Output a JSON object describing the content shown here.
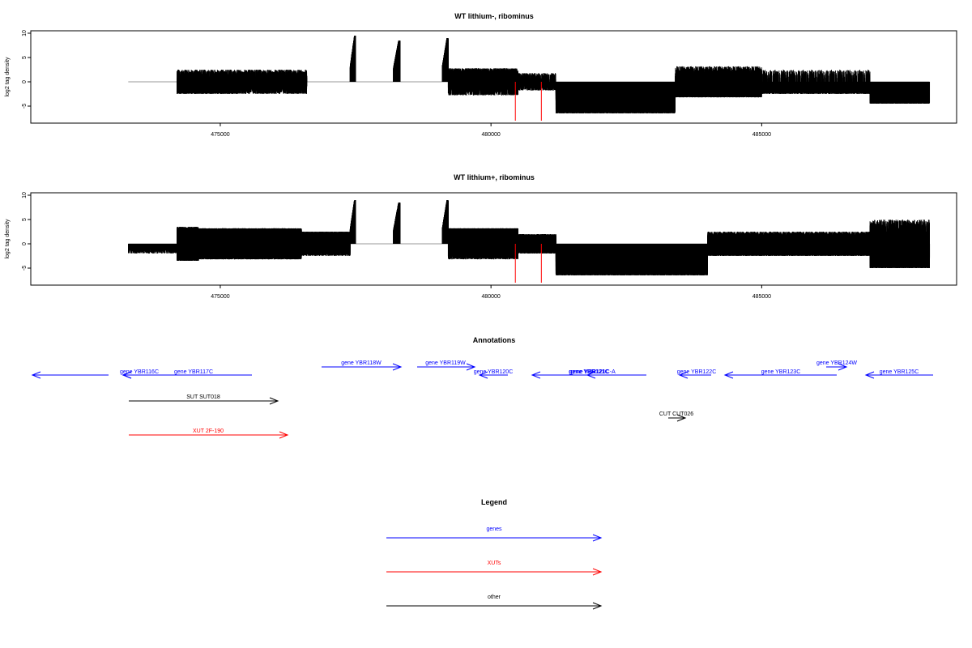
{
  "colors": {
    "gene": "#0000ff",
    "xut": "#ff0000",
    "other": "#000000",
    "axis": "#000000",
    "baseline": "#999999",
    "highlight": "#ff0000"
  },
  "chart_data": [
    {
      "type": "bar",
      "title": "WT lithium-, ribominus",
      "ylabel": "log2 tag density",
      "xlim": [
        471500,
        488600
      ],
      "ylim": [
        -8.5,
        10.5
      ],
      "yticks": [
        -5,
        0,
        5,
        10
      ],
      "xticks": [
        475000,
        480000,
        485000
      ],
      "xtick_labels": [
        "475000",
        "480000",
        "485000"
      ],
      "highlight_positions": [
        480450,
        480930
      ],
      "segments": [
        {
          "from": 473300,
          "to": 474200,
          "density": 0,
          "amplitude": 0,
          "sign": 0
        },
        {
          "from": 474200,
          "to": 475300,
          "density": 0.25,
          "amplitude": 2.5,
          "sign": 0.2
        },
        {
          "from": 475300,
          "to": 476600,
          "density": 0.15,
          "amplitude": 2.5,
          "sign": 0.4
        },
        {
          "from": 476600,
          "to": 477400,
          "density": 0,
          "amplitude": 0,
          "sign": 0
        },
        {
          "from": 477400,
          "to": 477500,
          "density": 1,
          "amplitude": 9.5,
          "sign": 1
        },
        {
          "from": 477500,
          "to": 478200,
          "density": 0,
          "amplitude": 0,
          "sign": 0
        },
        {
          "from": 478200,
          "to": 478320,
          "density": 1,
          "amplitude": 8.5,
          "sign": 1
        },
        {
          "from": 478320,
          "to": 479100,
          "density": 0,
          "amplitude": 0,
          "sign": 0
        },
        {
          "from": 479100,
          "to": 479210,
          "density": 1,
          "amplitude": 9.0,
          "sign": 1
        },
        {
          "from": 479210,
          "to": 480500,
          "density": 0.2,
          "amplitude": 2.8,
          "sign": 0.6
        },
        {
          "from": 480500,
          "to": 481200,
          "density": 0.1,
          "amplitude": 1.8,
          "sign": 0.4
        },
        {
          "from": 481200,
          "to": 483400,
          "density": 1,
          "amplitude": 6.5,
          "sign": 0
        },
        {
          "from": 483400,
          "to": 485000,
          "density": 0.55,
          "amplitude": 3.2,
          "sign": 0.1
        },
        {
          "from": 485000,
          "to": 487000,
          "density": 0.2,
          "amplitude": 2.5,
          "sign": 0.1
        },
        {
          "from": 487000,
          "to": 488100,
          "density": 0.9,
          "amplitude": 4.5,
          "sign": 0
        }
      ]
    },
    {
      "type": "bar",
      "title": "WT lithium+, ribominus",
      "ylabel": "log2 tag density",
      "xlim": [
        471500,
        488600
      ],
      "ylim": [
        -8.5,
        10.5
      ],
      "yticks": [
        -5,
        0,
        5,
        10
      ],
      "xticks": [
        475000,
        480000,
        485000
      ],
      "xtick_labels": [
        "475000",
        "480000",
        "485000"
      ],
      "highlight_positions": [
        480450,
        480930
      ],
      "segments": [
        {
          "from": 473300,
          "to": 474200,
          "density": 0.05,
          "amplitude": 2,
          "sign": 0
        },
        {
          "from": 474200,
          "to": 474600,
          "density": 0.9,
          "amplitude": 3.5,
          "sign": 0.3
        },
        {
          "from": 474600,
          "to": 476500,
          "density": 1,
          "amplitude": 3.2,
          "sign": 0.55
        },
        {
          "from": 476500,
          "to": 477400,
          "density": 0.5,
          "amplitude": 2.5,
          "sign": 0.8
        },
        {
          "from": 477400,
          "to": 477500,
          "density": 1,
          "amplitude": 9.0,
          "sign": 1
        },
        {
          "from": 477500,
          "to": 478200,
          "density": 0,
          "amplitude": 0,
          "sign": 0
        },
        {
          "from": 478200,
          "to": 478320,
          "density": 1,
          "amplitude": 8.5,
          "sign": 1
        },
        {
          "from": 478320,
          "to": 479100,
          "density": 0,
          "amplitude": 0,
          "sign": 0
        },
        {
          "from": 479100,
          "to": 479210,
          "density": 1,
          "amplitude": 9.0,
          "sign": 1
        },
        {
          "from": 479210,
          "to": 480500,
          "density": 0.9,
          "amplitude": 3.2,
          "sign": 0.85
        },
        {
          "from": 480500,
          "to": 481200,
          "density": 0.4,
          "amplitude": 2.0,
          "sign": 0.5
        },
        {
          "from": 481200,
          "to": 484000,
          "density": 1,
          "amplitude": 6.5,
          "sign": 0
        },
        {
          "from": 484000,
          "to": 487000,
          "density": 0.35,
          "amplitude": 2.5,
          "sign": 0.3
        },
        {
          "from": 487000,
          "to": 488100,
          "density": 1,
          "amplitude": 5.0,
          "sign": 0.05
        }
      ]
    }
  ],
  "annotations": {
    "title": "Annotations",
    "genes": [
      {
        "label": "gene YBR116C",
        "x1": 134,
        "x2": 40,
        "y": 463,
        "lx": 172,
        "ly": 461,
        "strand": "-"
      },
      {
        "label": "gene YBR116C",
        "x1": 190,
        "x2": 152,
        "y": 463,
        "lx": 172,
        "ly": 461,
        "strand": "-",
        "hide_label": true
      },
      {
        "label": "gene YBR117C",
        "x1": 311,
        "x2": 152,
        "y": 463,
        "lx": 239,
        "ly": 461,
        "strand": "-"
      },
      {
        "label": "gene YBR118W",
        "x1": 397,
        "x2": 495,
        "y": 453,
        "lx": 446,
        "ly": 450,
        "strand": "+"
      },
      {
        "label": "gene YBR119W",
        "x1": 515,
        "x2": 586,
        "y": 453,
        "lx": 550,
        "ly": 450,
        "strand": "+"
      },
      {
        "label": "gene YBR120C",
        "x1": 627,
        "x2": 592,
        "y": 463,
        "lx": 609,
        "ly": 461,
        "strand": "-"
      },
      {
        "label": "gene YBR121C",
        "x1": 798,
        "x2": 657,
        "y": 463,
        "lx": 727,
        "ly": 461,
        "strand": "-",
        "bold": true
      },
      {
        "label": "gene YBR121C-A",
        "x1": 768,
        "x2": 725,
        "y": 463,
        "lx": 732,
        "ly": 461,
        "strand": "-"
      },
      {
        "label": "gene YBR122C",
        "x1": 878,
        "x2": 839,
        "y": 463,
        "lx": 860,
        "ly": 461,
        "strand": "-"
      },
      {
        "label": "gene YBR123C",
        "x1": 1033,
        "x2": 895,
        "y": 463,
        "lx": 964,
        "ly": 461,
        "strand": "-"
      },
      {
        "label": "gene YBR124W",
        "x1": 1020,
        "x2": 1045,
        "y": 453,
        "lx": 1033,
        "ly": 450,
        "strand": "+"
      },
      {
        "label": "gene YBR125C",
        "x1": 1152,
        "x2": 1069,
        "y": 463,
        "lx": 1110,
        "ly": 461,
        "strand": "-"
      }
    ],
    "others": [
      {
        "label": "SUT SUT018",
        "x1": 159,
        "x2": 343,
        "y": 495,
        "lx": 251,
        "ly": 492,
        "color": "other"
      },
      {
        "label": "CUT CUT026",
        "x1": 825,
        "x2": 846,
        "y": 516,
        "lx": 835,
        "ly": 513,
        "color": "other"
      },
      {
        "label": "XUT 2F-190",
        "x1": 159,
        "x2": 355,
        "y": 537,
        "lx": 257,
        "ly": 534,
        "color": "xut"
      }
    ]
  },
  "legend": {
    "title": "Legend",
    "items": [
      {
        "label": "genes",
        "color": "gene"
      },
      {
        "label": "XUTs",
        "color": "xut"
      },
      {
        "label": "other",
        "color": "other"
      }
    ]
  }
}
